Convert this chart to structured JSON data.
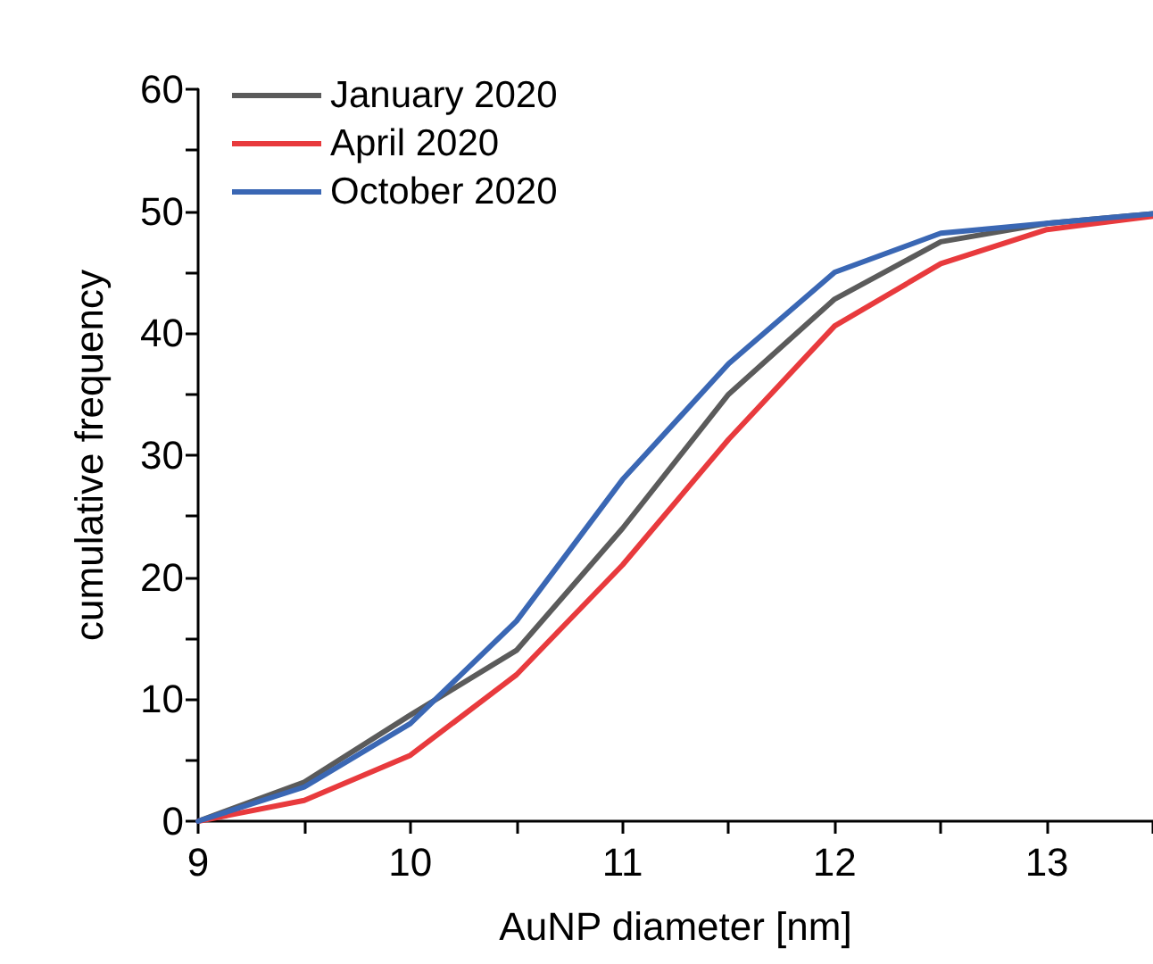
{
  "chart_data": {
    "type": "line",
    "xlabel": "AuNP diameter [nm]",
    "ylabel": "cumulative frequency",
    "x": [
      9,
      9.5,
      10,
      10.5,
      11,
      11.5,
      12,
      12.5,
      13,
      13.5
    ],
    "series": [
      {
        "name": "January 2020",
        "color": "#5b5b5b",
        "values": [
          0,
          3.2,
          8.7,
          14,
          24,
          35,
          42.8,
          47.5,
          49,
          49.8
        ]
      },
      {
        "name": "April 2020",
        "color": "#e83a3d",
        "values": [
          0,
          1.7,
          5.4,
          12,
          21,
          31.3,
          40.6,
          45.7,
          48.5,
          49.6
        ]
      },
      {
        "name": "October 2020",
        "color": "#3a67b4",
        "values": [
          0,
          2.8,
          8,
          16.4,
          28,
          37.5,
          45,
          48.2,
          49,
          49.8
        ]
      }
    ],
    "xlim": [
      9,
      13.5
    ],
    "xticks": [
      9,
      10,
      11,
      12,
      13
    ],
    "ylim": [
      0,
      60
    ],
    "yticks": [
      0,
      10,
      20,
      30,
      40,
      50,
      60
    ],
    "grid": false,
    "legend": "top left",
    "marker": "none",
    "line_style": "solid"
  }
}
